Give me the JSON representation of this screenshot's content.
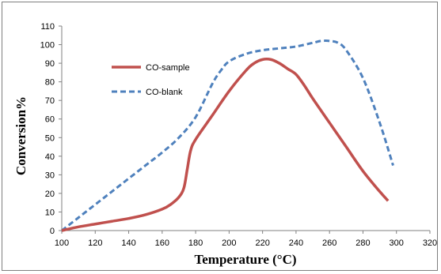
{
  "chart_data": {
    "type": "line",
    "xlabel": "Temperature (°C)",
    "ylabel": "Conversion%",
    "xlim": [
      100,
      320
    ],
    "ylim": [
      0,
      110
    ],
    "x_ticks": [
      100,
      120,
      140,
      160,
      180,
      200,
      220,
      240,
      260,
      280,
      300,
      320
    ],
    "y_ticks": [
      0,
      10,
      20,
      30,
      40,
      50,
      60,
      70,
      80,
      90,
      100,
      110
    ],
    "grid": false,
    "legend_position": "upper-left inside plot",
    "series": [
      {
        "name": "CO-sample",
        "color": "#c0504d",
        "style": "solid",
        "x": [
          100,
          110,
          120,
          130,
          140,
          150,
          160,
          165,
          170,
          173,
          175,
          177,
          180,
          190,
          200,
          210,
          215,
          220,
          225,
          230,
          235,
          240,
          245,
          250,
          260,
          270,
          280,
          290,
          295
        ],
        "y": [
          0,
          2,
          3.5,
          5,
          6.5,
          8.5,
          11.5,
          14,
          18,
          23,
          33,
          43,
          49,
          62,
          75,
          86,
          90,
          92,
          92,
          90,
          87,
          84,
          78,
          71,
          58,
          45,
          32,
          21,
          16
        ]
      },
      {
        "name": "CO-blank",
        "color": "#4f81bd",
        "style": "dashed",
        "x": [
          100,
          110,
          120,
          130,
          140,
          150,
          160,
          170,
          180,
          190,
          195,
          200,
          210,
          220,
          230,
          240,
          250,
          255,
          260,
          265,
          270,
          280,
          290,
          298
        ],
        "y": [
          0,
          7,
          14,
          21,
          28,
          35,
          42,
          50,
          61,
          79,
          86,
          91,
          95,
          97,
          98,
          99,
          101,
          102,
          102,
          101,
          97,
          82,
          58,
          35
        ]
      }
    ]
  }
}
